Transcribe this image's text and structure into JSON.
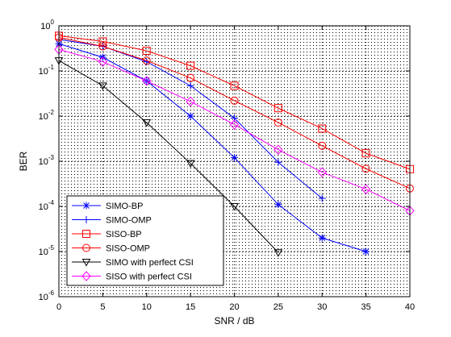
{
  "chart_data": {
    "type": "line",
    "title": "",
    "xlabel": "SNR / dB",
    "ylabel": "BER",
    "xscale": "linear",
    "yscale": "log",
    "xlim": [
      0,
      40
    ],
    "ylim": [
      1e-06,
      1
    ],
    "xticks": [
      0,
      5,
      10,
      15,
      20,
      25,
      30,
      35,
      40
    ],
    "xtick_labels": [
      "0",
      "5",
      "10",
      "15",
      "20",
      "25",
      "30",
      "35",
      "40"
    ],
    "yticks": [
      1e-06,
      1e-05,
      0.0001,
      0.001,
      0.01,
      0.1,
      1
    ],
    "ytick_labels": [
      {
        "base": "10",
        "exp": "-6"
      },
      {
        "base": "10",
        "exp": "-5"
      },
      {
        "base": "10",
        "exp": "-4"
      },
      {
        "base": "10",
        "exp": "-3"
      },
      {
        "base": "10",
        "exp": "-2"
      },
      {
        "base": "10",
        "exp": "-1"
      },
      {
        "base": "10",
        "exp": "0"
      }
    ],
    "grid": true,
    "legend_position": "bottom-left",
    "series": [
      {
        "name": "SIMO-BP",
        "color": "#0000ff",
        "marker": "asterisk",
        "x": [
          0,
          5,
          10,
          15,
          20,
          25,
          30,
          35
        ],
        "values": [
          0.4,
          0.2,
          0.06,
          0.01,
          0.0012,
          0.00011,
          2e-05,
          1e-05
        ]
      },
      {
        "name": "SIMO-OMP",
        "color": "#0000ff",
        "marker": "plus",
        "x": [
          0,
          5,
          10,
          15,
          20,
          25,
          30
        ],
        "values": [
          0.5,
          0.35,
          0.16,
          0.047,
          0.009,
          0.00095,
          0.00015
        ]
      },
      {
        "name": "SISO-BP",
        "color": "#ff0000",
        "marker": "square",
        "x": [
          0,
          5,
          10,
          15,
          20,
          25,
          30,
          35,
          40
        ],
        "values": [
          0.6,
          0.45,
          0.28,
          0.13,
          0.047,
          0.015,
          0.0053,
          0.0015,
          0.00067
        ]
      },
      {
        "name": "SISO-OMP",
        "color": "#ff0000",
        "marker": "circle",
        "x": [
          0,
          5,
          10,
          15,
          20,
          25,
          30,
          35,
          40
        ],
        "values": [
          0.55,
          0.35,
          0.17,
          0.07,
          0.022,
          0.0072,
          0.0022,
          0.00068,
          0.00025
        ]
      },
      {
        "name": "SIMO with perfect CSI",
        "color": "#000000",
        "marker": "triangle-down",
        "x": [
          0,
          5,
          10,
          15,
          20,
          25
        ],
        "values": [
          0.17,
          0.047,
          0.0072,
          0.0009,
          0.0001,
          9.5e-06
        ]
      },
      {
        "name": "SISO with perfect CSI",
        "color": "#ff00ff",
        "marker": "diamond",
        "x": [
          0,
          5,
          10,
          15,
          20,
          25,
          30,
          35,
          40
        ],
        "values": [
          0.3,
          0.16,
          0.06,
          0.021,
          0.0065,
          0.0018,
          0.00057,
          0.00024,
          8e-05
        ]
      }
    ]
  }
}
